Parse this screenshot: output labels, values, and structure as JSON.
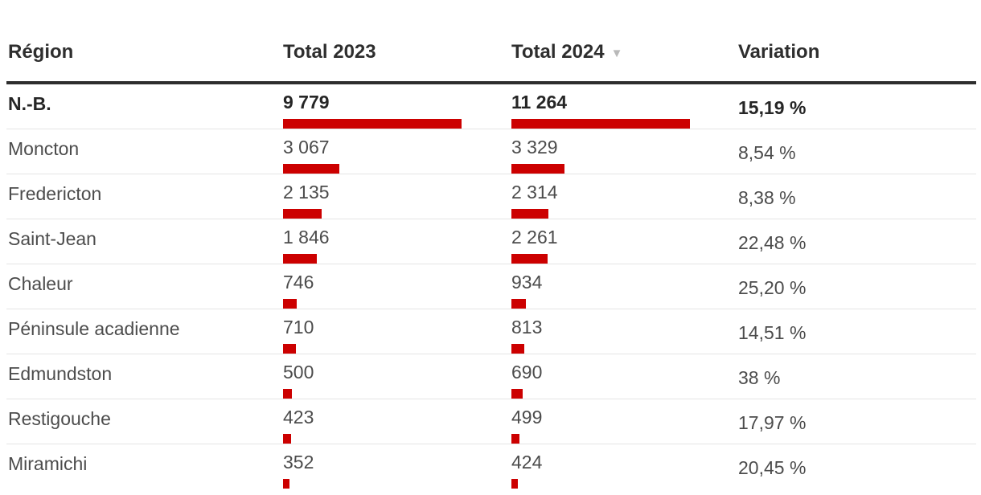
{
  "header": {
    "region": "Région",
    "total_2023": "Total 2023",
    "total_2024": "Total 2024",
    "variation": "Variation",
    "sort_icon": "▼"
  },
  "colors": {
    "bar_red": "#cc0000",
    "header_text": "#2e2e2e",
    "body_text": "#4c4c4c",
    "bold_text": "#262626",
    "sort_arrow": "#b9b9b9",
    "header_border": "#2e2e2e",
    "row_divider": "#e5e5e5"
  },
  "chart_data": {
    "type": "table",
    "columns": [
      "Région",
      "Total 2023",
      "Total 2024",
      "Variation"
    ],
    "sorted_by": "Total 2024",
    "sort_direction": "desc",
    "bar_scaling": "per-column-max",
    "rows": [
      {
        "region": "N.-B.",
        "total_2023": 9779,
        "total_2023_label": "9 779",
        "total_2024": 11264,
        "total_2024_label": "11 264",
        "variation": "15,19 %",
        "is_total_row": true
      },
      {
        "region": "Moncton",
        "total_2023": 3067,
        "total_2023_label": "3 067",
        "total_2024": 3329,
        "total_2024_label": "3 329",
        "variation": "8,54 %",
        "is_total_row": false
      },
      {
        "region": "Fredericton",
        "total_2023": 2135,
        "total_2023_label": "2 135",
        "total_2024": 2314,
        "total_2024_label": "2 314",
        "variation": "8,38 %",
        "is_total_row": false
      },
      {
        "region": "Saint-Jean",
        "total_2023": 1846,
        "total_2023_label": "1 846",
        "total_2024": 2261,
        "total_2024_label": "2 261",
        "variation": "22,48 %",
        "is_total_row": false
      },
      {
        "region": "Chaleur",
        "total_2023": 746,
        "total_2023_label": "746",
        "total_2024": 934,
        "total_2024_label": "934",
        "variation": "25,20 %",
        "is_total_row": false
      },
      {
        "region": "Péninsule acadienne",
        "total_2023": 710,
        "total_2023_label": "710",
        "total_2024": 813,
        "total_2024_label": "813",
        "variation": "14,51 %",
        "is_total_row": false
      },
      {
        "region": "Edmundston",
        "total_2023": 500,
        "total_2023_label": "500",
        "total_2024": 690,
        "total_2024_label": "690",
        "variation": "38 %",
        "is_total_row": false
      },
      {
        "region": "Restigouche",
        "total_2023": 423,
        "total_2023_label": "423",
        "total_2024": 499,
        "total_2024_label": "499",
        "variation": "17,97 %",
        "is_total_row": false
      },
      {
        "region": "Miramichi",
        "total_2023": 352,
        "total_2023_label": "352",
        "total_2024": 424,
        "total_2024_label": "424",
        "variation": "20,45 %",
        "is_total_row": false
      }
    ]
  }
}
